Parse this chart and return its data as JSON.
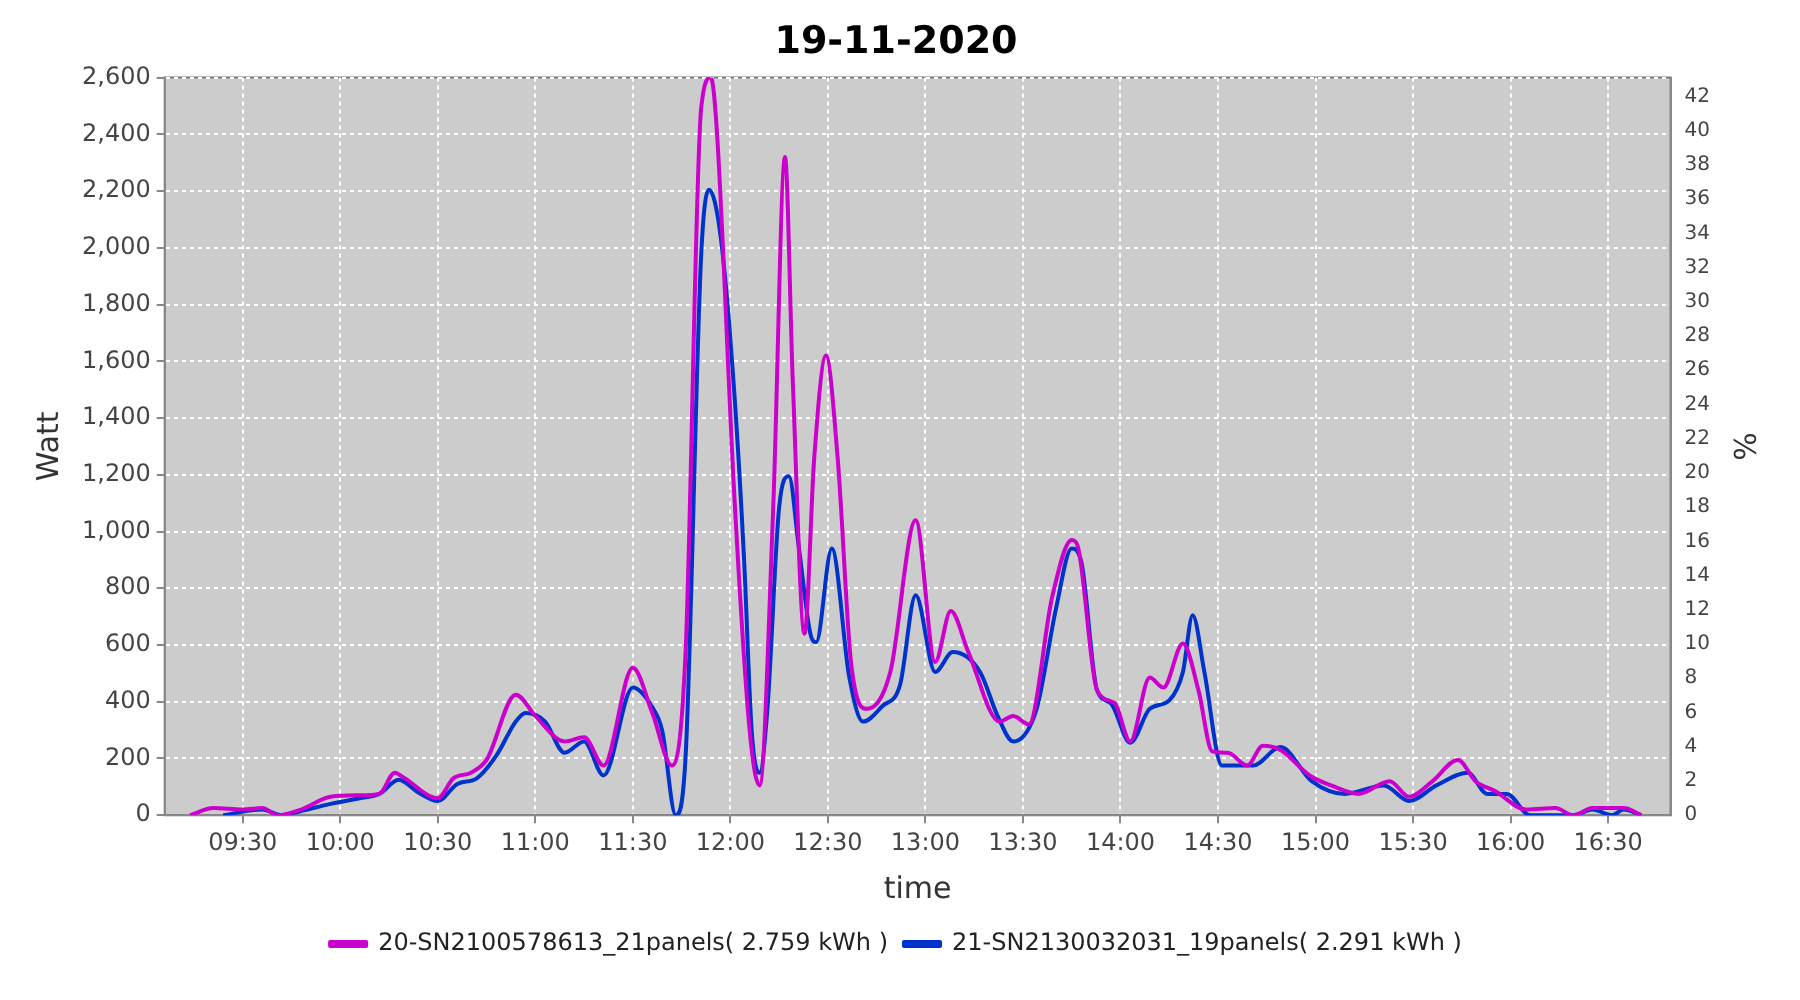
{
  "chart_data": {
    "type": "line",
    "title": "19-11-2020",
    "xlabel": "time",
    "ylabel": "Watt",
    "y2label": "%",
    "xlim": [
      9.1,
      16.82
    ],
    "ylim": [
      0,
      2600
    ],
    "y2lim": [
      0,
      43.1
    ],
    "xticks": [
      {
        "value": 9.5,
        "label": "09:30"
      },
      {
        "value": 10,
        "label": "10:00"
      },
      {
        "value": 10.5,
        "label": "10:30"
      },
      {
        "value": 11,
        "label": "11:00"
      },
      {
        "value": 11.5,
        "label": "11:30"
      },
      {
        "value": 12,
        "label": "12:00"
      },
      {
        "value": 12.5,
        "label": "12:30"
      },
      {
        "value": 13,
        "label": "13:00"
      },
      {
        "value": 13.5,
        "label": "13:30"
      },
      {
        "value": 14,
        "label": "14:00"
      },
      {
        "value": 14.5,
        "label": "14:30"
      },
      {
        "value": 15,
        "label": "15:00"
      },
      {
        "value": 15.5,
        "label": "15:30"
      },
      {
        "value": 16,
        "label": "16:00"
      },
      {
        "value": 16.5,
        "label": "16:30"
      }
    ],
    "yticks": [
      {
        "value": 0,
        "label": "0"
      },
      {
        "value": 200,
        "label": "200"
      },
      {
        "value": 400,
        "label": "400"
      },
      {
        "value": 600,
        "label": "600"
      },
      {
        "value": 800,
        "label": "800"
      },
      {
        "value": 1000,
        "label": "1,000"
      },
      {
        "value": 1200,
        "label": "1,200"
      },
      {
        "value": 1400,
        "label": "1,400"
      },
      {
        "value": 1600,
        "label": "1,600"
      },
      {
        "value": 1800,
        "label": "1,800"
      },
      {
        "value": 2000,
        "label": "2,000"
      },
      {
        "value": 2200,
        "label": "2,200"
      },
      {
        "value": 2400,
        "label": "2,400"
      },
      {
        "value": 2600,
        "label": "2,600"
      }
    ],
    "y2ticks": [
      0,
      2,
      4,
      6,
      8,
      10,
      12,
      14,
      16,
      18,
      20,
      22,
      24,
      26,
      28,
      30,
      32,
      34,
      36,
      38,
      40,
      42
    ],
    "grid": true,
    "legend": "bottom",
    "marker": "none",
    "line_style": "solid",
    "series": [
      {
        "name": "20-SN2100578613_21panels( 2.759 kWh )",
        "color": "#cc00cc",
        "x": [
          9.23,
          9.35,
          9.5,
          9.6,
          9.68,
          9.8,
          9.95,
          10.1,
          10.2,
          10.28,
          10.33,
          10.5,
          10.58,
          10.67,
          10.75,
          10.9,
          11.0,
          11.15,
          11.25,
          11.35,
          11.5,
          11.6,
          11.7,
          11.77,
          11.85,
          11.9,
          11.93,
          12.02,
          12.1,
          12.15,
          12.22,
          12.28,
          12.32,
          12.38,
          12.43,
          12.49,
          12.55,
          12.62,
          12.7,
          12.82,
          12.95,
          13.05,
          13.13,
          13.22,
          13.38,
          13.45,
          13.53,
          13.65,
          13.75,
          13.78,
          13.88,
          13.97,
          14.05,
          14.15,
          14.22,
          14.32,
          14.4,
          14.47,
          14.55,
          14.65,
          14.73,
          14.82,
          14.97,
          15.08,
          15.22,
          15.38,
          15.48,
          15.6,
          15.73,
          15.82,
          15.92,
          16.08,
          16.23,
          16.32,
          16.42,
          16.58,
          16.67
        ],
        "values": [
          0,
          25,
          20,
          25,
          0,
          20,
          65,
          70,
          75,
          150,
          130,
          60,
          130,
          150,
          195,
          425,
          350,
          260,
          275,
          175,
          520,
          360,
          175,
          570,
          2490,
          2600,
          2420,
          1130,
          290,
          105,
          1090,
          2320,
          1530,
          640,
          1260,
          1620,
          1260,
          530,
          375,
          505,
          1040,
          540,
          720,
          575,
          330,
          350,
          320,
          770,
          970,
          950,
          440,
          395,
          260,
          485,
          450,
          605,
          440,
          225,
          220,
          175,
          245,
          230,
          140,
          105,
          75,
          120,
          65,
          120,
          195,
          120,
          85,
          20,
          25,
          0,
          25,
          25,
          0
        ]
      },
      {
        "name": "21-SN2130032031_19panels( 2.291 kWh )",
        "color": "#0033cc",
        "x": [
          9.4,
          9.6,
          9.7,
          9.8,
          9.95,
          10.1,
          10.2,
          10.3,
          10.4,
          10.5,
          10.6,
          10.7,
          10.8,
          10.9,
          10.95,
          11.05,
          11.15,
          11.25,
          11.35,
          11.5,
          11.6,
          11.65,
          11.72,
          11.77,
          11.85,
          11.89,
          11.95,
          12.02,
          12.07,
          12.11,
          12.15,
          12.19,
          12.25,
          12.3,
          12.35,
          12.41,
          12.44,
          12.52,
          12.61,
          12.68,
          12.78,
          12.87,
          12.95,
          13.05,
          13.14,
          13.28,
          13.37,
          13.45,
          13.57,
          13.67,
          13.75,
          13.8,
          13.88,
          13.95,
          14.05,
          14.15,
          14.25,
          14.32,
          14.37,
          14.43,
          14.52,
          14.68,
          14.82,
          14.98,
          15.15,
          15.35,
          15.48,
          15.62,
          15.78,
          15.88,
          15.98,
          16.1,
          16.32,
          16.42,
          16.52,
          16.58,
          16.67
        ],
        "values": [
          0,
          20,
          0,
          15,
          40,
          60,
          75,
          125,
          80,
          50,
          110,
          130,
          210,
          330,
          360,
          330,
          220,
          260,
          140,
          450,
          380,
          300,
          0,
          200,
          1970,
          2205,
          2040,
          1490,
          905,
          290,
          150,
          375,
          1085,
          1195,
          950,
          640,
          610,
          940,
          485,
          330,
          385,
          460,
          775,
          505,
          575,
          505,
          350,
          260,
          375,
          730,
          940,
          890,
          440,
          395,
          255,
          375,
          405,
          505,
          705,
          505,
          175,
          175,
          240,
          120,
          75,
          105,
          50,
          105,
          150,
          75,
          75,
          0,
          0,
          20,
          0,
          20,
          0
        ]
      }
    ]
  }
}
